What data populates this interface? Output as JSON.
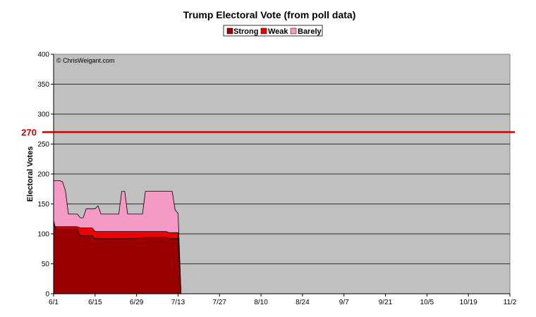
{
  "chart_data": {
    "type": "area",
    "title": "Trump Electoral Vote (from poll data)",
    "ylabel": "Electoral Votes",
    "xlabel": "",
    "ylim": [
      0,
      400
    ],
    "yticks": [
      0,
      50,
      100,
      150,
      200,
      250,
      300,
      350,
      400
    ],
    "xlim_days": [
      0,
      154
    ],
    "xticks": [
      {
        "label": "6/1",
        "day": 0
      },
      {
        "label": "6/15",
        "day": 14
      },
      {
        "label": "6/29",
        "day": 28
      },
      {
        "label": "7/13",
        "day": 42
      },
      {
        "label": "7/27",
        "day": 56
      },
      {
        "label": "8/10",
        "day": 70
      },
      {
        "label": "8/24",
        "day": 84
      },
      {
        "label": "9/7",
        "day": 98
      },
      {
        "label": "9/21",
        "day": 112
      },
      {
        "label": "10/5",
        "day": 126
      },
      {
        "label": "10/19",
        "day": 140
      },
      {
        "label": "11/2",
        "day": 154
      }
    ],
    "grid": true,
    "legend_position": "top-center",
    "watermark": "© ChrisWeigant.com",
    "threshold": {
      "value": 270,
      "label": "270",
      "color": "#cc0000"
    },
    "stacking": "cumulative",
    "series": [
      {
        "name": "Strong",
        "color": "#990000",
        "points": [
          [
            0,
            122
          ],
          [
            0.5,
            112
          ],
          [
            1,
            108
          ],
          [
            8,
            108
          ],
          [
            9,
            97
          ],
          [
            13,
            97
          ],
          [
            14,
            92
          ],
          [
            24,
            92
          ],
          [
            27,
            92
          ],
          [
            30,
            94
          ],
          [
            38,
            94
          ],
          [
            39,
            92
          ],
          [
            42,
            92
          ],
          [
            43,
            0
          ]
        ]
      },
      {
        "name": "Weak",
        "color": "#ee0000",
        "points": [
          [
            0,
            122
          ],
          [
            0.5,
            112
          ],
          [
            1,
            112
          ],
          [
            8,
            112
          ],
          [
            9,
            110
          ],
          [
            13,
            110
          ],
          [
            14,
            104
          ],
          [
            24,
            104
          ],
          [
            27,
            104
          ],
          [
            30,
            104
          ],
          [
            38,
            104
          ],
          [
            39,
            102
          ],
          [
            42,
            102
          ],
          [
            43,
            0
          ]
        ]
      },
      {
        "name": "Barely",
        "color": "#f59ac4",
        "points": [
          [
            0,
            189
          ],
          [
            2,
            189
          ],
          [
            3,
            187
          ],
          [
            4,
            172
          ],
          [
            5,
            133
          ],
          [
            8,
            133
          ],
          [
            9,
            127
          ],
          [
            10,
            127
          ],
          [
            11,
            142
          ],
          [
            14,
            142
          ],
          [
            15,
            147
          ],
          [
            16,
            133
          ],
          [
            22,
            133
          ],
          [
            23,
            171
          ],
          [
            24,
            171
          ],
          [
            25,
            133
          ],
          [
            30,
            133
          ],
          [
            31,
            171
          ],
          [
            40,
            171
          ],
          [
            41,
            140
          ],
          [
            42,
            134
          ],
          [
            43,
            0
          ]
        ]
      }
    ]
  }
}
